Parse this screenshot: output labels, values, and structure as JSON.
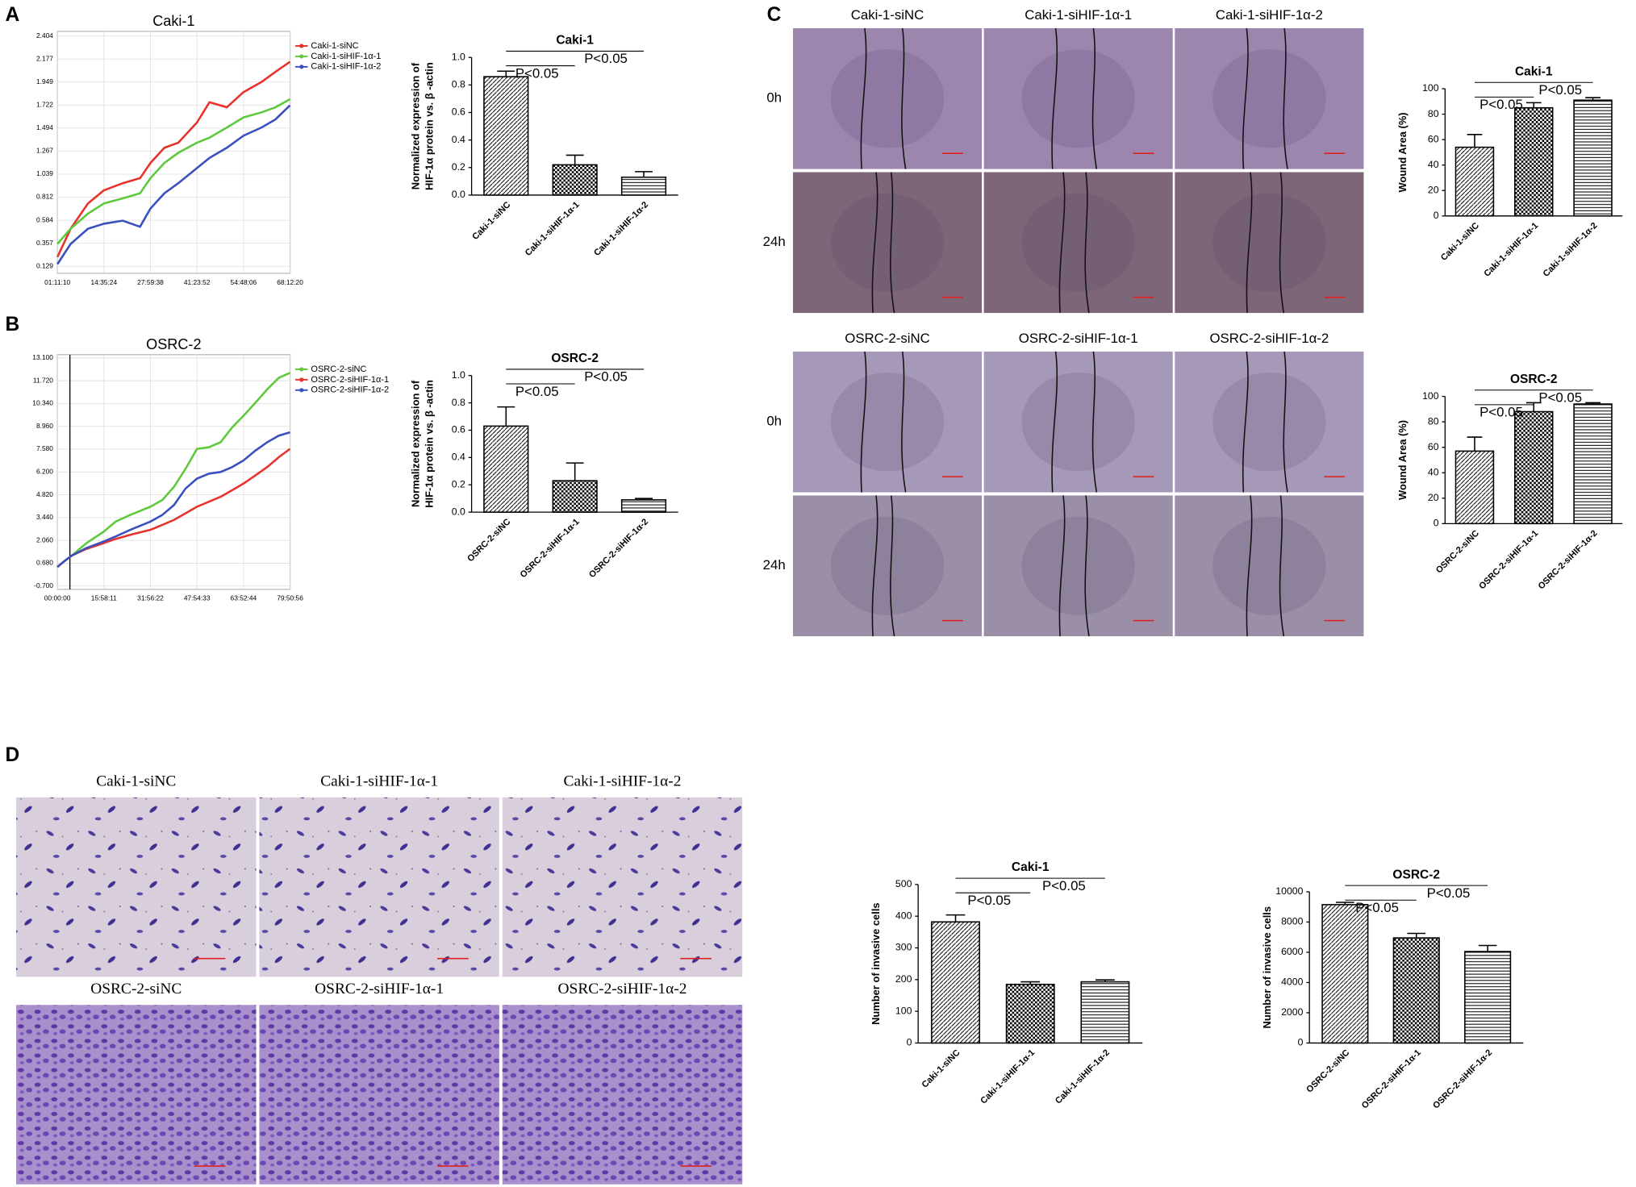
{
  "panel_labels": [
    "A",
    "B",
    "C",
    "D"
  ],
  "wound_assay": [
    {
      "columns": [
        "Caki-1-siNC",
        "Caki-1-siHIF-1α-1",
        "Caki-1-siHIF-1α-2"
      ],
      "rows": [
        "0h",
        "24h"
      ]
    },
    {
      "columns": [
        "OSRC-2-siNC",
        "OSRC-2-siHIF-1α-1",
        "OSRC-2-siHIF-1α-2"
      ],
      "rows": [
        "0h",
        "24h"
      ]
    }
  ],
  "invasion_assay": [
    {
      "columns": [
        "Caki-1-siNC",
        "Caki-1-siHIF-1α-1",
        "Caki-1-siHIF-1α-2"
      ]
    },
    {
      "columns": [
        "OSRC-2-siNC",
        "OSRC-2-siHIF-1α-1",
        "OSRC-2-siHIF-1α-2"
      ]
    }
  ],
  "chart_data": [
    {
      "type": "line",
      "title": "Caki-1",
      "grid": true,
      "legend": "right",
      "x": [
        1.186,
        5,
        10,
        14.59,
        20,
        25,
        27.994,
        32,
        36,
        41.398,
        45,
        50,
        54.802,
        60,
        64,
        68.206
      ],
      "xlim": [
        1.186,
        68.206
      ],
      "xticks": [
        {
          "value": 1.186,
          "label": "01:11:10"
        },
        {
          "value": 14.59,
          "label": "14:35:24"
        },
        {
          "value": 27.994,
          "label": "27:59:38"
        },
        {
          "value": 41.398,
          "label": "41:23:52"
        },
        {
          "value": 54.802,
          "label": "54:48:06"
        },
        {
          "value": 68.206,
          "label": "68:12:20"
        }
      ],
      "ylim": [
        0.06,
        2.45
      ],
      "yticks": [
        0.129,
        0.357,
        0.584,
        0.812,
        1.039,
        1.267,
        1.494,
        1.722,
        1.949,
        2.177,
        2.404
      ],
      "series": [
        {
          "name": "Caki-1-siNC",
          "color": "#e8322c",
          "values": [
            0.22,
            0.5,
            0.75,
            0.88,
            0.95,
            1.0,
            1.15,
            1.3,
            1.35,
            1.55,
            1.75,
            1.7,
            1.85,
            1.95,
            2.05,
            2.15
          ]
        },
        {
          "name": "Caki-1-siHIF-1α-1",
          "color": "#5ec93a",
          "values": [
            0.35,
            0.5,
            0.65,
            0.75,
            0.8,
            0.85,
            1.0,
            1.15,
            1.25,
            1.35,
            1.4,
            1.5,
            1.6,
            1.65,
            1.7,
            1.78
          ]
        },
        {
          "name": "Caki-1-siHIF-1α-2",
          "color": "#3a4fc0",
          "values": [
            0.15,
            0.35,
            0.5,
            0.55,
            0.58,
            0.52,
            0.7,
            0.85,
            0.95,
            1.1,
            1.2,
            1.3,
            1.42,
            1.5,
            1.58,
            1.72
          ]
        }
      ]
    },
    {
      "type": "bar",
      "title": "Caki-1",
      "ylabel": [
        "Normalized expression of",
        "HIF-1α   protein vs. β -actin"
      ],
      "categories": [
        "Caki-1-siNC",
        "Caki-1-siHIF-1α-1",
        "Caki-1-siHIF-1α-2"
      ],
      "values": [
        0.86,
        0.22,
        0.13
      ],
      "errors": [
        0.04,
        0.07,
        0.04
      ],
      "patterns": [
        "diagonal",
        "checker",
        "horizontal"
      ],
      "color": "#000000",
      "ylim": [
        0,
        1.0
      ],
      "yticks": [
        {
          "value": 0,
          "label": "0.0"
        },
        0.2,
        0.4,
        0.6,
        0.8,
        {
          "value": 1,
          "label": "1.0"
        }
      ],
      "annotations": [
        "P<0.05",
        "P<0.05"
      ]
    },
    {
      "type": "line",
      "title": "OSRC-2",
      "grid": true,
      "legend": "right",
      "vline": 4.3,
      "x": [
        0,
        2,
        5,
        10,
        15.97,
        20,
        25,
        31.939,
        36,
        40,
        44,
        47.909,
        52,
        56,
        60,
        63.879,
        68,
        72,
        76,
        79.849
      ],
      "xlim": [
        0,
        79.849
      ],
      "xticks": [
        {
          "value": 0,
          "label": "00:00:00"
        },
        {
          "value": 15.97,
          "label": "15:58:11"
        },
        {
          "value": 31.939,
          "label": "31:56:22"
        },
        {
          "value": 47.909,
          "label": "47:54:33"
        },
        {
          "value": 63.879,
          "label": "63:52:44"
        },
        {
          "value": 79.849,
          "label": "79:50:56"
        }
      ],
      "ylim": [
        -0.9,
        13.3
      ],
      "yticks": [
        {
          "value": -0.7,
          "label": "-0.700"
        },
        {
          "value": 0.68,
          "label": "0.680"
        },
        {
          "value": 2.06,
          "label": "2.060"
        },
        {
          "value": 3.44,
          "label": "3.440"
        },
        {
          "value": 4.82,
          "label": "4.820"
        },
        {
          "value": 6.2,
          "label": "6.200"
        },
        {
          "value": 7.58,
          "label": "7.580"
        },
        {
          "value": 8.96,
          "label": "8.960"
        },
        {
          "value": 10.34,
          "label": "10.340"
        },
        {
          "value": 11.72,
          "label": "11.720"
        },
        {
          "value": 13.1,
          "label": "13.100"
        }
      ],
      "series": [
        {
          "name": "OSRC-2-siNC",
          "color": "#5ec93a",
          "values": [
            0.45,
            0.75,
            1.15,
            1.9,
            2.6,
            3.2,
            3.6,
            4.1,
            4.5,
            5.3,
            6.4,
            7.6,
            7.7,
            8.0,
            8.9,
            9.6,
            10.4,
            11.2,
            11.9,
            12.2
          ]
        },
        {
          "name": "OSRC-2-siHIF-1α-1",
          "color": "#e8322c",
          "values": [
            0.45,
            0.75,
            1.15,
            1.55,
            1.9,
            2.15,
            2.4,
            2.7,
            3.0,
            3.3,
            3.7,
            4.1,
            4.4,
            4.7,
            5.1,
            5.5,
            6.0,
            6.5,
            7.1,
            7.6
          ]
        },
        {
          "name": "OSRC-2-siHIF-1α-2",
          "color": "#3a4fc0",
          "values": [
            0.45,
            0.75,
            1.15,
            1.6,
            2.0,
            2.3,
            2.7,
            3.2,
            3.6,
            4.2,
            5.2,
            5.8,
            6.1,
            6.2,
            6.5,
            6.9,
            7.5,
            8.0,
            8.4,
            8.6
          ]
        }
      ]
    },
    {
      "type": "bar",
      "title": "OSRC-2",
      "ylabel": [
        "Normalized expression of",
        "HIF-1α   protein vs. β -actin"
      ],
      "categories": [
        "OSRC-2-siNC",
        "OSRC-2-siHIF-1α-1",
        "OSRC-2-siHIF-1α-2"
      ],
      "values": [
        0.63,
        0.23,
        0.09
      ],
      "errors": [
        0.14,
        0.13,
        0.01
      ],
      "patterns": [
        "diagonal",
        "checker",
        "horizontal"
      ],
      "color": "#000000",
      "ylim": [
        0,
        1.0
      ],
      "yticks": [
        {
          "value": 0,
          "label": "0.0"
        },
        0.2,
        0.4,
        0.6,
        0.8,
        {
          "value": 1,
          "label": "1.0"
        }
      ],
      "annotations": [
        "P<0.05",
        "P<0.05"
      ]
    },
    {
      "type": "bar",
      "title": "Caki-1",
      "ylabel": [
        "Wound Area (%)"
      ],
      "categories": [
        "Caki-1-siNC",
        "Caki-1-siHIF-1α-1",
        "Caki-1-siHIF-1α-2"
      ],
      "values": [
        54,
        85,
        91
      ],
      "errors": [
        10,
        4,
        2
      ],
      "patterns": [
        "diagonal",
        "checker",
        "horizontal"
      ],
      "color": "#000000",
      "ylim": [
        0,
        100
      ],
      "yticks": [
        0,
        20,
        40,
        60,
        80,
        100
      ],
      "annotations": [
        "P<0.05",
        "P<0.05"
      ]
    },
    {
      "type": "bar",
      "title": "OSRC-2",
      "ylabel": [
        "Wound Area (%)"
      ],
      "categories": [
        "OSRC-2-siNC",
        "OSRC-2-siHIF-1α-1",
        "OSRC-2-siHIF-1α-2"
      ],
      "values": [
        57,
        88,
        94
      ],
      "errors": [
        11,
        7,
        1
      ],
      "patterns": [
        "diagonal",
        "checker",
        "horizontal"
      ],
      "color": "#000000",
      "ylim": [
        0,
        100
      ],
      "yticks": [
        0,
        20,
        40,
        60,
        80,
        100
      ],
      "annotations": [
        "P<0.05",
        "P<0.05"
      ]
    },
    {
      "type": "bar",
      "title": "Caki-1",
      "ylabel": [
        "Number of invasive cells"
      ],
      "categories": [
        "Caki-1-siNC",
        "Caki-1-siHIF-1α-1",
        "Caki-1-siHIF-1α-2"
      ],
      "values": [
        382,
        185,
        193
      ],
      "errors": [
        22,
        8,
        6
      ],
      "patterns": [
        "diagonal",
        "checker",
        "horizontal"
      ],
      "color": "#000000",
      "ylim": [
        0,
        500
      ],
      "yticks": [
        0,
        100,
        200,
        300,
        400,
        500
      ],
      "annotations": [
        "P<0.05",
        "P<0.05"
      ]
    },
    {
      "type": "bar",
      "title": "OSRC-2",
      "ylabel": [
        "Number of invasive cells"
      ],
      "categories": [
        "OSRC-2-siNC",
        "OSRC-2-siHIF-1α-1",
        "OSRC-2-siHIF-1α-2"
      ],
      "values": [
        9150,
        6950,
        6050
      ],
      "errors": [
        150,
        300,
        400
      ],
      "patterns": [
        "diagonal",
        "checker",
        "horizontal"
      ],
      "color": "#000000",
      "ylim": [
        0,
        10000
      ],
      "yticks": [
        0,
        2000,
        4000,
        6000,
        8000,
        10000
      ],
      "annotations": [
        "P<0.05",
        "P<0.05"
      ]
    }
  ]
}
